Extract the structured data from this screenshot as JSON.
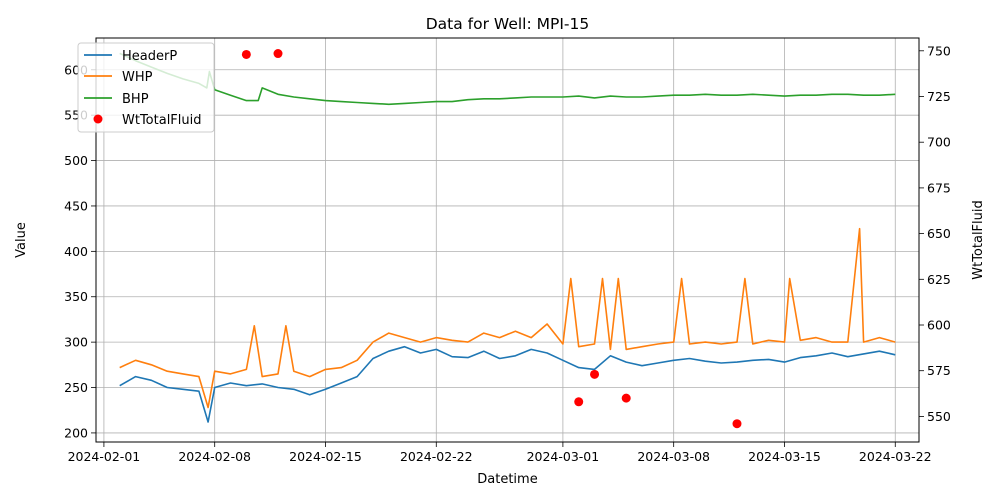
{
  "chart_data": {
    "type": "line",
    "title": "Data for Well: MPI-15",
    "xlabel": "Datetime",
    "ylabel": "Value",
    "y2label": "WtTotalFluid",
    "x_tick_labels": [
      "2024-02-01",
      "2024-02-08",
      "2024-02-15",
      "2024-02-22",
      "2024-03-01",
      "2024-03-08",
      "2024-03-15",
      "2024-03-22"
    ],
    "x_ticks": [
      "2024-02-01",
      "2024-02-08",
      "2024-02-15",
      "2024-02-22",
      "2024-03-01",
      "2024-03-08",
      "2024-03-15",
      "2024-03-22"
    ],
    "xlim": [
      "2024-01-31T12:00",
      "2024-03-23T12:00"
    ],
    "ylim": [
      190,
      635
    ],
    "y_ticks": [
      200,
      250,
      300,
      350,
      400,
      450,
      500,
      550,
      600
    ],
    "y2lim": [
      536,
      757
    ],
    "y2_ticks": [
      550,
      575,
      600,
      625,
      650,
      675,
      700,
      725,
      750
    ],
    "grid": true,
    "legend_position": "top-left",
    "series": [
      {
        "name": "HeaderP",
        "axis": "left",
        "color": "#1f77b4",
        "x": [
          "2024-02-02T00:00",
          "2024-02-03T00:00",
          "2024-02-04T00:00",
          "2024-02-05T00:00",
          "2024-02-06T00:00",
          "2024-02-07T00:00",
          "2024-02-07T14:00",
          "2024-02-08T00:00",
          "2024-02-09T00:00",
          "2024-02-10T00:00",
          "2024-02-11T00:00",
          "2024-02-12T00:00",
          "2024-02-13T00:00",
          "2024-02-14T00:00",
          "2024-02-15T00:00",
          "2024-02-16T00:00",
          "2024-02-17T00:00",
          "2024-02-18T00:00",
          "2024-02-19T00:00",
          "2024-02-20T00:00",
          "2024-02-21T00:00",
          "2024-02-22T00:00",
          "2024-02-23T00:00",
          "2024-02-24T00:00",
          "2024-02-25T00:00",
          "2024-02-26T00:00",
          "2024-02-27T00:00",
          "2024-02-28T00:00",
          "2024-02-29T00:00",
          "2024-03-01T00:00",
          "2024-03-02T00:00",
          "2024-03-03T00:00",
          "2024-03-04T00:00",
          "2024-03-05T00:00",
          "2024-03-06T00:00",
          "2024-03-07T00:00",
          "2024-03-08T00:00",
          "2024-03-09T00:00",
          "2024-03-10T00:00",
          "2024-03-11T00:00",
          "2024-03-12T00:00",
          "2024-03-13T00:00",
          "2024-03-14T00:00",
          "2024-03-15T00:00",
          "2024-03-16T00:00",
          "2024-03-17T00:00",
          "2024-03-18T00:00",
          "2024-03-19T00:00",
          "2024-03-20T00:00",
          "2024-03-21T00:00",
          "2024-03-22T00:00"
        ],
        "values": [
          252,
          262,
          258,
          250,
          248,
          246,
          212,
          250,
          255,
          252,
          254,
          250,
          248,
          242,
          248,
          255,
          262,
          282,
          290,
          295,
          288,
          292,
          284,
          283,
          290,
          282,
          285,
          292,
          288,
          280,
          272,
          270,
          285,
          278,
          274,
          277,
          280,
          282,
          279,
          277,
          278,
          280,
          281,
          278,
          283,
          285,
          288,
          284,
          287,
          290,
          286
        ]
      },
      {
        "name": "WHP",
        "axis": "left",
        "color": "#ff7f0e",
        "x": [
          "2024-02-02T00:00",
          "2024-02-03T00:00",
          "2024-02-04T00:00",
          "2024-02-05T00:00",
          "2024-02-06T00:00",
          "2024-02-07T00:00",
          "2024-02-07T14:00",
          "2024-02-08T00:00",
          "2024-02-09T00:00",
          "2024-02-10T00:00",
          "2024-02-10T12:00",
          "2024-02-11T00:00",
          "2024-02-12T00:00",
          "2024-02-12T12:00",
          "2024-02-13T00:00",
          "2024-02-14T00:00",
          "2024-02-15T00:00",
          "2024-02-16T00:00",
          "2024-02-17T00:00",
          "2024-02-18T00:00",
          "2024-02-19T00:00",
          "2024-02-20T00:00",
          "2024-02-21T00:00",
          "2024-02-22T00:00",
          "2024-02-23T00:00",
          "2024-02-24T00:00",
          "2024-02-25T00:00",
          "2024-02-26T00:00",
          "2024-02-27T00:00",
          "2024-02-28T00:00",
          "2024-02-29T00:00",
          "2024-03-01T00:00",
          "2024-03-01T12:00",
          "2024-03-02T00:00",
          "2024-03-03T00:00",
          "2024-03-03T12:00",
          "2024-03-04T00:00",
          "2024-03-04T12:00",
          "2024-03-05T00:00",
          "2024-03-06T00:00",
          "2024-03-07T00:00",
          "2024-03-08T00:00",
          "2024-03-08T12:00",
          "2024-03-09T00:00",
          "2024-03-10T00:00",
          "2024-03-11T00:00",
          "2024-03-12T00:00",
          "2024-03-12T12:00",
          "2024-03-13T00:00",
          "2024-03-14T00:00",
          "2024-03-15T00:00",
          "2024-03-15T08:00",
          "2024-03-16T00:00",
          "2024-03-17T00:00",
          "2024-03-18T00:00",
          "2024-03-19T00:00",
          "2024-03-19T18:00",
          "2024-03-20T00:00",
          "2024-03-21T00:00",
          "2024-03-22T00:00"
        ],
        "values": [
          272,
          280,
          275,
          268,
          265,
          262,
          228,
          268,
          265,
          270,
          318,
          262,
          265,
          318,
          268,
          262,
          270,
          272,
          280,
          300,
          310,
          305,
          300,
          305,
          302,
          300,
          310,
          305,
          312,
          305,
          320,
          298,
          370,
          295,
          298,
          370,
          292,
          370,
          292,
          295,
          298,
          300,
          370,
          298,
          300,
          298,
          300,
          370,
          298,
          302,
          300,
          370,
          302,
          305,
          300,
          300,
          425,
          300,
          305,
          300
        ]
      },
      {
        "name": "BHP",
        "axis": "left",
        "color": "#2ca02c",
        "x": [
          "2024-02-02T00:00",
          "2024-02-03T00:00",
          "2024-02-04T00:00",
          "2024-02-05T00:00",
          "2024-02-06T00:00",
          "2024-02-07T00:00",
          "2024-02-07T12:00",
          "2024-02-07T16:00",
          "2024-02-08T00:00",
          "2024-02-09T00:00",
          "2024-02-10T00:00",
          "2024-02-10T18:00",
          "2024-02-11T00:00",
          "2024-02-12T00:00",
          "2024-02-13T00:00",
          "2024-02-14T00:00",
          "2024-02-15T00:00",
          "2024-02-16T00:00",
          "2024-02-17T00:00",
          "2024-02-18T00:00",
          "2024-02-19T00:00",
          "2024-02-20T00:00",
          "2024-02-21T00:00",
          "2024-02-22T00:00",
          "2024-02-23T00:00",
          "2024-02-24T00:00",
          "2024-02-25T00:00",
          "2024-02-26T00:00",
          "2024-02-27T00:00",
          "2024-02-28T00:00",
          "2024-02-29T00:00",
          "2024-03-01T00:00",
          "2024-03-02T00:00",
          "2024-03-03T00:00",
          "2024-03-04T00:00",
          "2024-03-05T00:00",
          "2024-03-06T00:00",
          "2024-03-07T00:00",
          "2024-03-08T00:00",
          "2024-03-09T00:00",
          "2024-03-10T00:00",
          "2024-03-11T00:00",
          "2024-03-12T00:00",
          "2024-03-13T00:00",
          "2024-03-14T00:00",
          "2024-03-15T00:00",
          "2024-03-16T00:00",
          "2024-03-17T00:00",
          "2024-03-18T00:00",
          "2024-03-19T00:00",
          "2024-03-20T00:00",
          "2024-03-21T00:00",
          "2024-03-22T00:00"
        ],
        "values": [
          618,
          610,
          603,
          596,
          590,
          585,
          580,
          598,
          578,
          572,
          566,
          566,
          580,
          573,
          570,
          568,
          566,
          565,
          564,
          563,
          562,
          563,
          564,
          565,
          565,
          567,
          568,
          568,
          569,
          570,
          570,
          570,
          571,
          569,
          571,
          570,
          570,
          571,
          572,
          572,
          573,
          572,
          572,
          573,
          572,
          571,
          572,
          572,
          573,
          573,
          572,
          572,
          573
        ]
      },
      {
        "name": "WtTotalFluid",
        "axis": "right",
        "color": "#ff0000",
        "style": "points",
        "x": [
          "2024-02-10T00:00",
          "2024-02-12T00:00",
          "2024-03-02T00:00",
          "2024-03-03T00:00",
          "2024-03-05T00:00",
          "2024-03-12T00:00"
        ],
        "values": [
          748,
          748.5,
          558,
          573,
          560,
          546
        ]
      }
    ]
  }
}
